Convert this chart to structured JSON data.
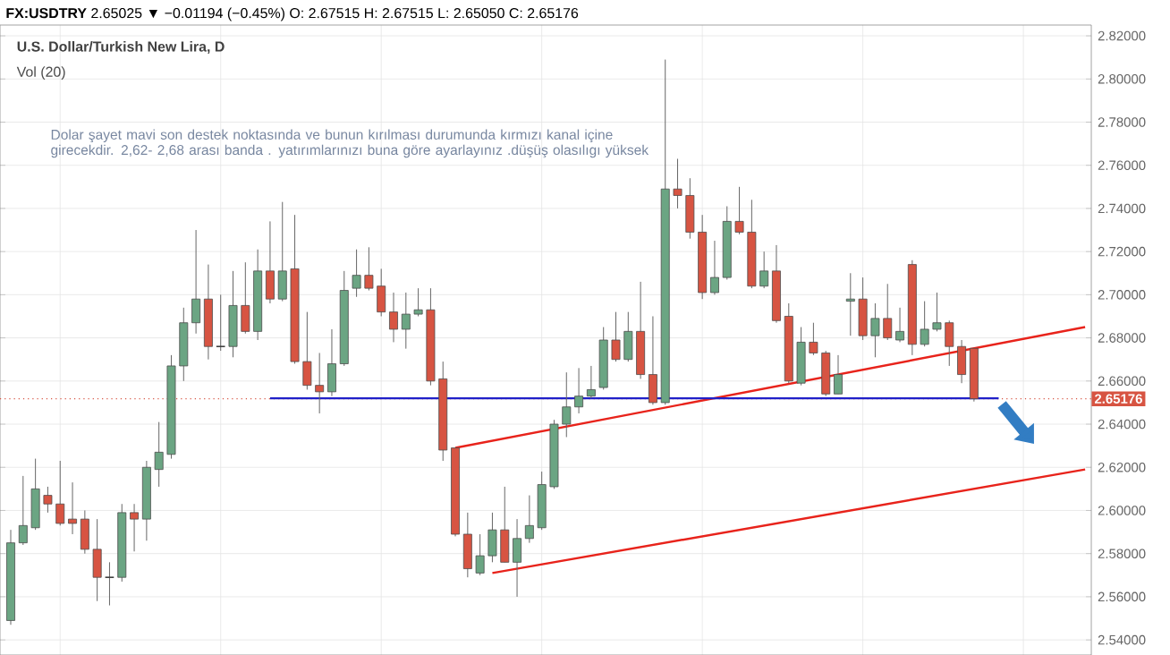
{
  "chart_data": {
    "type": "candlestick",
    "title": "**FX:USDTRY** 2.65025 ▼ −0.01194 (−0.45%) O: 2.67515 H: 2.67515 L: 2.65050 C: 2.65176",
    "subtitle": "U.S. Dollar/Turkish New Lira, D",
    "annotations": [
      "Vol (20)",
      "Dolar şayet mavi son destek noktasında ve bunun kırılması durumunda kırmızı kanal içine girecekdir. 2,62- 2,68 arası banda . yatırımlarınızı buna göre ayarlayınız .düşüş olasılıgı yüksek"
    ],
    "categories": [
      null,
      null,
      null,
      null,
      null,
      null,
      null,
      null,
      null,
      null,
      null,
      null,
      null,
      null,
      null,
      null,
      null,
      null,
      null,
      null,
      null,
      null,
      null,
      null,
      null,
      null,
      null,
      null,
      null,
      null,
      null,
      null,
      null,
      null,
      null,
      null,
      null,
      null,
      null,
      null,
      null,
      null,
      null,
      null,
      null,
      null,
      null,
      null,
      null,
      null,
      null,
      null,
      null,
      null,
      null,
      null,
      null,
      null,
      null,
      null,
      null,
      null,
      null,
      null,
      null,
      null,
      null,
      null,
      null,
      null,
      null,
      null,
      null,
      null,
      null,
      null,
      null,
      null,
      null,
      null,
      null,
      null,
      null,
      null,
      null,
      null,
      null,
      null
    ],
    "ohlc": [
      [
        2.549,
        2.591,
        2.547,
        2.585
      ],
      [
        2.585,
        2.616,
        2.584,
        2.593
      ],
      [
        2.592,
        2.624,
        2.591,
        2.61
      ],
      [
        2.607,
        2.611,
        2.599,
        2.603
      ],
      [
        2.603,
        2.623,
        2.593,
        2.594
      ],
      [
        2.596,
        2.613,
        2.589,
        2.594
      ],
      [
        2.596,
        2.6,
        2.58,
        2.582
      ],
      [
        2.582,
        2.596,
        2.558,
        2.569
      ],
      [
        2.569,
        2.576,
        2.556,
        2.569
      ],
      [
        2.569,
        2.603,
        2.567,
        2.599
      ],
      [
        2.599,
        2.603,
        2.581,
        2.596
      ],
      [
        2.596,
        2.623,
        2.586,
        2.62
      ],
      [
        2.619,
        2.641,
        2.611,
        2.627
      ],
      [
        2.626,
        2.672,
        2.624,
        2.667
      ],
      [
        2.667,
        2.694,
        2.66,
        2.687
      ],
      [
        2.687,
        2.73,
        2.682,
        2.698
      ],
      [
        2.698,
        2.714,
        2.67,
        2.676
      ],
      [
        2.676,
        2.7,
        2.674,
        2.676
      ],
      [
        2.676,
        2.711,
        2.671,
        2.695
      ],
      [
        2.695,
        2.715,
        2.682,
        2.683
      ],
      [
        2.683,
        2.721,
        2.679,
        2.711
      ],
      [
        2.711,
        2.734,
        2.696,
        2.698
      ],
      [
        2.698,
        2.743,
        2.697,
        2.711
      ],
      [
        2.712,
        2.737,
        2.668,
        2.669
      ],
      [
        2.669,
        2.692,
        2.656,
        2.658
      ],
      [
        2.658,
        2.673,
        2.645,
        2.655
      ],
      [
        2.655,
        2.684,
        2.653,
        2.668
      ],
      [
        2.668,
        2.711,
        2.667,
        2.702
      ],
      [
        2.703,
        2.721,
        2.699,
        2.709
      ],
      [
        2.709,
        2.722,
        2.702,
        2.703
      ],
      [
        2.704,
        2.712,
        2.69,
        2.692
      ],
      [
        2.692,
        2.701,
        2.678,
        2.684
      ],
      [
        2.684,
        2.701,
        2.675,
        2.691
      ],
      [
        2.691,
        2.703,
        2.69,
        2.693
      ],
      [
        2.693,
        2.703,
        2.658,
        2.66
      ],
      [
        2.661,
        2.669,
        2.623,
        2.628
      ],
      [
        2.629,
        2.629,
        2.588,
        2.589
      ],
      [
        2.589,
        2.599,
        2.569,
        2.573
      ],
      [
        2.571,
        2.589,
        2.57,
        2.579
      ],
      [
        2.579,
        2.599,
        2.576,
        2.591
      ],
      [
        2.591,
        2.611,
        2.576,
        2.576
      ],
      [
        2.576,
        2.596,
        2.56,
        2.587
      ],
      [
        2.587,
        2.607,
        2.585,
        2.593
      ],
      [
        2.592,
        2.618,
        2.591,
        2.612
      ],
      [
        2.611,
        2.642,
        2.61,
        2.64
      ],
      [
        2.64,
        2.664,
        2.634,
        2.648
      ],
      [
        2.648,
        2.666,
        2.645,
        2.653
      ],
      [
        2.653,
        2.667,
        2.652,
        2.656
      ],
      [
        2.657,
        2.685,
        2.656,
        2.679
      ],
      [
        2.679,
        2.692,
        2.669,
        2.67
      ],
      [
        2.67,
        2.692,
        2.669,
        2.683
      ],
      [
        2.683,
        2.706,
        2.661,
        2.663
      ],
      [
        2.663,
        2.69,
        2.649,
        2.65
      ],
      [
        2.65,
        2.809,
        2.649,
        2.749
      ],
      [
        2.749,
        2.763,
        2.74,
        2.746
      ],
      [
        2.746,
        2.754,
        2.726,
        2.729
      ],
      [
        2.729,
        2.737,
        2.698,
        2.701
      ],
      [
        2.701,
        2.725,
        2.7,
        2.708
      ],
      [
        2.708,
        2.741,
        2.707,
        2.734
      ],
      [
        2.734,
        2.75,
        2.728,
        2.729
      ],
      [
        2.729,
        2.744,
        2.703,
        2.704
      ],
      [
        2.704,
        2.72,
        2.703,
        2.711
      ],
      [
        2.711,
        2.723,
        2.687,
        2.688
      ],
      [
        2.69,
        2.696,
        2.659,
        2.66
      ],
      [
        2.659,
        2.685,
        2.658,
        2.678
      ],
      [
        2.678,
        2.687,
        2.672,
        2.673
      ],
      [
        2.673,
        2.674,
        2.653,
        2.654
      ],
      [
        2.654,
        2.672,
        2.654,
        2.663
      ],
      [
        2.697,
        2.71,
        2.681,
        2.698
      ],
      [
        2.698,
        2.708,
        2.679,
        2.681
      ],
      [
        2.681,
        2.696,
        2.671,
        2.689
      ],
      [
        2.689,
        2.705,
        2.679,
        2.68
      ],
      [
        2.679,
        2.694,
        2.678,
        2.683
      ],
      [
        2.714,
        2.716,
        2.672,
        2.677
      ],
      [
        2.677,
        2.697,
        2.676,
        2.684
      ],
      [
        2.684,
        2.701,
        2.683,
        2.687
      ],
      [
        2.687,
        2.688,
        2.667,
        2.676
      ],
      [
        2.676,
        2.679,
        2.659,
        2.663
      ],
      [
        2.67515,
        2.67515,
        2.6505,
        2.65176
      ],
      null,
      null,
      null,
      null,
      null,
      null,
      null,
      null,
      null
    ],
    "colors": [
      "#6ba583",
      "#6ba583",
      "#6ba583",
      "#d75442",
      "#d75442",
      "#d75442",
      "#d75442",
      "#d75442",
      "#404040",
      "#6ba583",
      "#d75442",
      "#6ba583",
      "#6ba583",
      "#6ba583",
      "#6ba583",
      "#6ba583",
      "#d75442",
      "#404040",
      "#6ba583",
      "#d75442",
      "#6ba583",
      "#d75442",
      "#6ba583",
      "#d75442",
      "#d75442",
      "#d75442",
      "#6ba583",
      "#6ba583",
      "#6ba583",
      "#d75442",
      "#d75442",
      "#d75442",
      "#6ba583",
      "#6ba583",
      "#d75442",
      "#d75442",
      "#d75442",
      "#d75442",
      "#6ba583",
      "#6ba583",
      "#d75442",
      "#6ba583",
      "#6ba583",
      "#6ba583",
      "#6ba583",
      "#6ba583",
      "#6ba583",
      "#6ba583",
      "#6ba583",
      "#d75442",
      "#6ba583",
      "#d75442",
      "#d75442",
      "#6ba583",
      "#d75442",
      "#d75442",
      "#d75442",
      "#6ba583",
      "#6ba583",
      "#d75442",
      "#d75442",
      "#6ba583",
      "#d75442",
      "#d75442",
      "#6ba583",
      "#d75442",
      "#d75442",
      "#6ba583",
      "#6ba583",
      "#d75442",
      "#6ba583",
      "#d75442",
      "#6ba583",
      "#d75442",
      "#6ba583",
      "#6ba583",
      "#d75442",
      "#d75442",
      "#d75442",
      null,
      null,
      null,
      null,
      null,
      null,
      null,
      null,
      null
    ],
    "series": [
      {
        "type": "line",
        "color": "#e8231b",
        "values": [
          null,
          null,
          null,
          null,
          null,
          null,
          null,
          null,
          null,
          null,
          null,
          null,
          null,
          null,
          null,
          null,
          null,
          null,
          null,
          null,
          null,
          null,
          null,
          null,
          null,
          null,
          null,
          null,
          null,
          null,
          null,
          null,
          null,
          null,
          null,
          null,
          2.629,
          null,
          null,
          null,
          null,
          null,
          null,
          null,
          null,
          null,
          null,
          null,
          null,
          null,
          null,
          null,
          null,
          null,
          null,
          null,
          null,
          null,
          null,
          null,
          null,
          null,
          null,
          null,
          null,
          null,
          null,
          null,
          null,
          null,
          null,
          null,
          null,
          null,
          null,
          null,
          null,
          null,
          null,
          null,
          null,
          null,
          null,
          null,
          null,
          null,
          null,
          2.685
        ]
      },
      {
        "type": "line",
        "color": "#e8231b",
        "values": [
          null,
          null,
          null,
          null,
          null,
          null,
          null,
          null,
          null,
          null,
          null,
          null,
          null,
          null,
          null,
          null,
          null,
          null,
          null,
          null,
          null,
          null,
          null,
          null,
          null,
          null,
          null,
          null,
          null,
          null,
          null,
          null,
          null,
          null,
          null,
          null,
          null,
          null,
          null,
          2.571,
          null,
          null,
          null,
          null,
          null,
          null,
          null,
          null,
          null,
          null,
          null,
          null,
          null,
          null,
          null,
          null,
          null,
          null,
          null,
          null,
          null,
          null,
          null,
          null,
          null,
          null,
          null,
          null,
          null,
          null,
          null,
          null,
          null,
          null,
          null,
          null,
          null,
          null,
          null,
          null,
          null,
          null,
          null,
          null,
          null,
          null,
          null,
          2.619
        ]
      },
      {
        "type": "line",
        "color": "#2020c8",
        "values": [
          null,
          null,
          null,
          null,
          null,
          null,
          null,
          null,
          null,
          null,
          null,
          null,
          null,
          null,
          null,
          null,
          null,
          null,
          null,
          null,
          null,
          2.652,
          null,
          null,
          null,
          null,
          null,
          null,
          null,
          null,
          null,
          null,
          null,
          null,
          null,
          null,
          null,
          null,
          null,
          null,
          null,
          null,
          null,
          null,
          null,
          null,
          null,
          null,
          null,
          null,
          null,
          null,
          null,
          null,
          null,
          null,
          null,
          null,
          null,
          null,
          null,
          null,
          null,
          null,
          null,
          null,
          null,
          null,
          null,
          null,
          null,
          null,
          null,
          null,
          null,
          null,
          null,
          null,
          null,
          null,
          2.652,
          null,
          null,
          null,
          null,
          null,
          null,
          null
        ]
      }
    ],
    "ref_lines": [
      {
        "axis": "y",
        "value": 2.65176,
        "label": "2.65176",
        "color": "#d75442",
        "line_style": "dotted"
      }
    ],
    "ylim": [
      2.533,
      2.825
    ],
    "yticks": [
      {
        "value": 2.54,
        "label": "2.54000"
      },
      {
        "value": 2.56,
        "label": "2.56000"
      },
      {
        "value": 2.58,
        "label": "2.58000"
      },
      {
        "value": 2.6,
        "label": "2.60000"
      },
      {
        "value": 2.62,
        "label": "2.62000"
      },
      {
        "value": 2.64,
        "label": "2.64000"
      },
      {
        "value": 2.66,
        "label": "2.66000"
      },
      {
        "value": 2.68,
        "label": "2.68000"
      },
      {
        "value": 2.7,
        "label": "2.70000"
      },
      {
        "value": 2.72,
        "label": "2.72000"
      },
      {
        "value": 2.74,
        "label": "2.74000"
      },
      {
        "value": 2.76,
        "label": "2.76000"
      },
      {
        "value": 2.78,
        "label": "2.78000"
      },
      {
        "value": 2.8,
        "label": "2.80000"
      },
      {
        "value": 2.82,
        "label": "2.82000"
      }
    ],
    "grid": true,
    "tick_labels": "y"
  }
}
